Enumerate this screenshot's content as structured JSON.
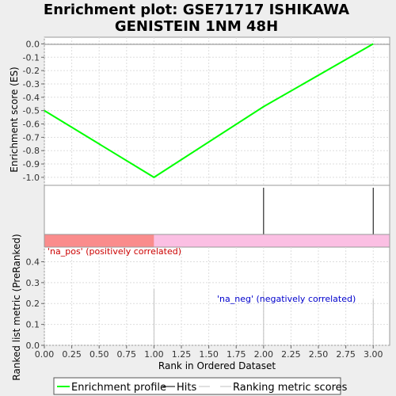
{
  "chart_data": {
    "type": "line",
    "title_lines": [
      "Enrichment plot: GSE71717 ISHIKAWA",
      "GENISTEIN 1NM 48H"
    ],
    "x_axis": {
      "label": "Rank in Ordered Dataset",
      "range": [
        0,
        3.15
      ],
      "ticks": [
        "0.00",
        "0.25",
        "0.50",
        "0.75",
        "1.00",
        "1.25",
        "1.50",
        "1.75",
        "2.00",
        "2.25",
        "2.50",
        "2.75",
        "3.00"
      ]
    },
    "es_panel": {
      "ylabel": "Enrichment score (ES)",
      "ylim": [
        -1.06,
        0.05
      ],
      "y_ticks": [
        "0.0",
        "-0.1",
        "-0.2",
        "-0.3",
        "-0.4",
        "-0.5",
        "-0.6",
        "-0.7",
        "-0.8",
        "-0.9",
        "-1.0"
      ],
      "grid": true,
      "series": [
        {
          "name": "Enrichment profile",
          "color": "#00ff00",
          "x": [
            0,
            1,
            2,
            3
          ],
          "y": [
            -0.5,
            -1.0,
            -0.47,
            0.0
          ]
        }
      ]
    },
    "hits_panel": {
      "hits_x": [
        2,
        3
      ],
      "color": "#000000"
    },
    "ranking_colorbar": {
      "segments": [
        {
          "from": 0,
          "to": 1,
          "color": "#fa8c8c"
        },
        {
          "from": 1,
          "to": 3.15,
          "color": "#fbbfe3"
        }
      ]
    },
    "metric_panel": {
      "ylabel": "Ranked list metric (PreRanked)",
      "ylim": [
        0,
        0.47
      ],
      "y_ticks": [
        "0.0",
        "0.1",
        "0.2",
        "0.3",
        "0.4"
      ],
      "grid": true,
      "bars": {
        "x": [
          1,
          2,
          3
        ],
        "values": [
          0.27,
          0.26,
          0.22
        ],
        "color": "#c0c0c0"
      },
      "annotations": {
        "pos": {
          "text": "'na_pos' (positively correlated)",
          "color": "#cc0000"
        },
        "neg": {
          "text": "'na_neg' (negatively correlated)",
          "color": "#0000cc"
        }
      }
    },
    "legend": [
      {
        "label": "Enrichment profile",
        "color": "#00ff00",
        "kind": "line"
      },
      {
        "label": "Hits",
        "color": "#000000",
        "kind": "line"
      },
      {
        "label": "",
        "color": "#c0c0c0",
        "kind": "line"
      },
      {
        "label": "Ranking metric scores",
        "color": "#c0c0c0",
        "kind": "line"
      }
    ]
  }
}
